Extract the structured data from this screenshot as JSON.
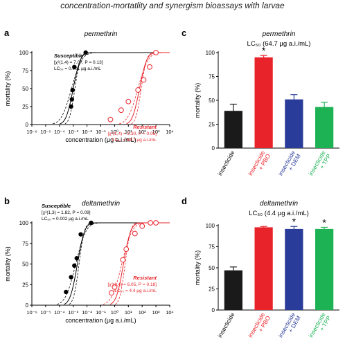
{
  "figure": {
    "title": "concentration-mortatlity and synergism bioassays with larvae"
  },
  "chart_data": [
    {
      "panel": "a",
      "type": "scatter",
      "title": "permethrin",
      "xlabel": "concentration (µg a.i./mL)",
      "ylabel": "mortality (%)",
      "x_scale": "log",
      "xlim": [
        1e-06,
        10000
      ],
      "ylim": [
        0,
        100
      ],
      "xtick_labels": [
        "10⁻⁶",
        "10⁻⁵",
        "10⁻⁴",
        "10⁻³",
        "10⁻²",
        "10⁻¹",
        "10⁰",
        "10¹",
        "10²",
        "10³",
        "10⁴"
      ],
      "yticks": [
        "0",
        "25",
        "50",
        "75",
        "100"
      ],
      "series": [
        {
          "name": "Susceptible",
          "color": "#000000",
          "marker": "filled-circle",
          "stats": [
            "[χ²(1,4) = 7.07, P = 0.13]",
            "LC₅₀ = 0.001 µg a.i./mL"
          ],
          "lc50": 0.001,
          "points": [
            [
              0.0007,
              25
            ],
            [
              0.0008,
              35
            ],
            [
              0.0009,
              48
            ],
            [
              0.0012,
              80
            ],
            [
              0.008,
              100
            ]
          ]
        },
        {
          "name": "Resistant",
          "color": "#e8242a",
          "marker": "open-circle",
          "stats": [
            "[χ²(1,4) = 2.30, P = 0.05]",
            "LC₅₀ = 64.7 µg a.i./mL"
          ],
          "lc50": 64.7,
          "points": [
            [
              0.5,
              7
            ],
            [
              3,
              20
            ],
            [
              10,
              32
            ],
            [
              50,
              48
            ],
            [
              130,
              62
            ],
            [
              350,
              80
            ],
            [
              1000,
              100
            ]
          ]
        }
      ]
    },
    {
      "panel": "b",
      "type": "scatter",
      "title": "deltamethrin",
      "xlabel": "concentration (µg a.i./mL)",
      "ylabel": "mortality (%)",
      "x_scale": "log",
      "xlim": [
        1e-06,
        10000
      ],
      "ylim": [
        0,
        100
      ],
      "xtick_labels": [
        "10⁻⁶",
        "10⁻⁵",
        "10⁻⁴",
        "10⁻³",
        "10⁻²",
        "10⁻¹",
        "10⁰",
        "10¹",
        "10²",
        "10³",
        "10⁴"
      ],
      "yticks": [
        "0",
        "25",
        "50",
        "75",
        "100"
      ],
      "series": [
        {
          "name": "Susceptible",
          "color": "#000000",
          "marker": "filled-circle",
          "stats": [
            "[χ²(1,3) = 1.82, P = 0.09]",
            "LC₅₀ = 0.002 µg a.i./mL"
          ],
          "lc50": 0.002,
          "points": [
            [
              0.0003,
              16
            ],
            [
              0.0007,
              34
            ],
            [
              0.0012,
              48
            ],
            [
              0.0018,
              57
            ],
            [
              0.0035,
              86
            ],
            [
              0.02,
              100
            ]
          ]
        },
        {
          "name": "Resistant",
          "color": "#e8242a",
          "marker": "open-circle",
          "stats": [
            "[χ²(1,4) = 6.05, P = 0.18]",
            "LC₅₀ = 4.4 µg a.i./mL"
          ],
          "lc50": 4.4,
          "points": [
            [
              0.6,
              15
            ],
            [
              1,
              22
            ],
            [
              4,
              55
            ],
            [
              7,
              68
            ],
            [
              30,
              87
            ],
            [
              100,
              96
            ],
            [
              400,
              100
            ],
            [
              1000,
              100
            ]
          ]
        }
      ]
    },
    {
      "panel": "c",
      "type": "bar",
      "title": "permethrin",
      "subtitle": "LC₅₀ (64.7 µg a.i./mL)",
      "ylabel": "mortality (%)",
      "ylim": [
        0,
        100
      ],
      "yticks": [
        "0",
        "25",
        "50",
        "75",
        "100"
      ],
      "categories": [
        "insecticide",
        "insecticide + PBO",
        "insecticide + DEM",
        "insecticide + TPP"
      ],
      "values": [
        39,
        95,
        51,
        43
      ],
      "errors": [
        7,
        2,
        5,
        5
      ],
      "colors": [
        "#1a1a1a",
        "#e8242a",
        "#2a3c9a",
        "#1db254"
      ],
      "significance": [
        "",
        "*",
        "",
        ""
      ]
    },
    {
      "panel": "d",
      "type": "bar",
      "title": "deltamethrin",
      "subtitle": "LC₅₀ (4.4 µg a.i./mL)",
      "ylabel": "mortality (%)",
      "ylim": [
        0,
        100
      ],
      "yticks": [
        "0",
        "25",
        "50",
        "75",
        "100"
      ],
      "categories": [
        "insecticide",
        "insecticide + PBO",
        "insecticide + DEM",
        "insecticide + TPP"
      ],
      "values": [
        47,
        98,
        96,
        96
      ],
      "errors": [
        4,
        1,
        3,
        2
      ],
      "colors": [
        "#1a1a1a",
        "#e8242a",
        "#2a3c9a",
        "#1db254"
      ],
      "significance": [
        "",
        "",
        "*",
        "*"
      ]
    }
  ]
}
